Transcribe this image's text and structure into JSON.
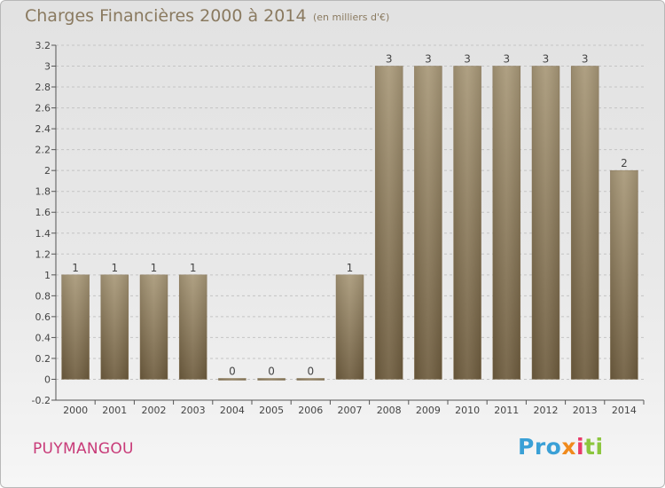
{
  "title": "Charges Financières 2000 à 2014",
  "subtitle": "(en milliers d'€)",
  "commune": "PUYMANGOU",
  "logo_text": "Proxiti",
  "colors": {
    "bar_top": "#a89878",
    "bar_bottom": "#6e5c3e",
    "title": "#8a7a60",
    "commune": "#c83a78",
    "grid": "#c4c4c4"
  },
  "chart_data": {
    "type": "bar",
    "categories": [
      "2000",
      "2001",
      "2002",
      "2003",
      "2004",
      "2005",
      "2006",
      "2007",
      "2008",
      "2009",
      "2010",
      "2011",
      "2012",
      "2013",
      "2014"
    ],
    "values": [
      1,
      1,
      1,
      1,
      0,
      0,
      0,
      1,
      3,
      3,
      3,
      3,
      3,
      3,
      2
    ],
    "data_labels": [
      "1",
      "1",
      "1",
      "1",
      "0",
      "0",
      "0",
      "1",
      "3",
      "3",
      "3",
      "3",
      "3",
      "3",
      "2"
    ],
    "y_ticks": [
      "3.2",
      "3",
      "2.8",
      "2.6",
      "2.4",
      "2.2",
      "2",
      "1.8",
      "1.6",
      "1.4",
      "1.2",
      "1",
      "0.8",
      "0.6",
      "0.4",
      "0.2",
      "0",
      "-0.2"
    ],
    "ylim": [
      -0.2,
      3.2
    ],
    "grid": true,
    "xlabel": "",
    "ylabel": ""
  }
}
